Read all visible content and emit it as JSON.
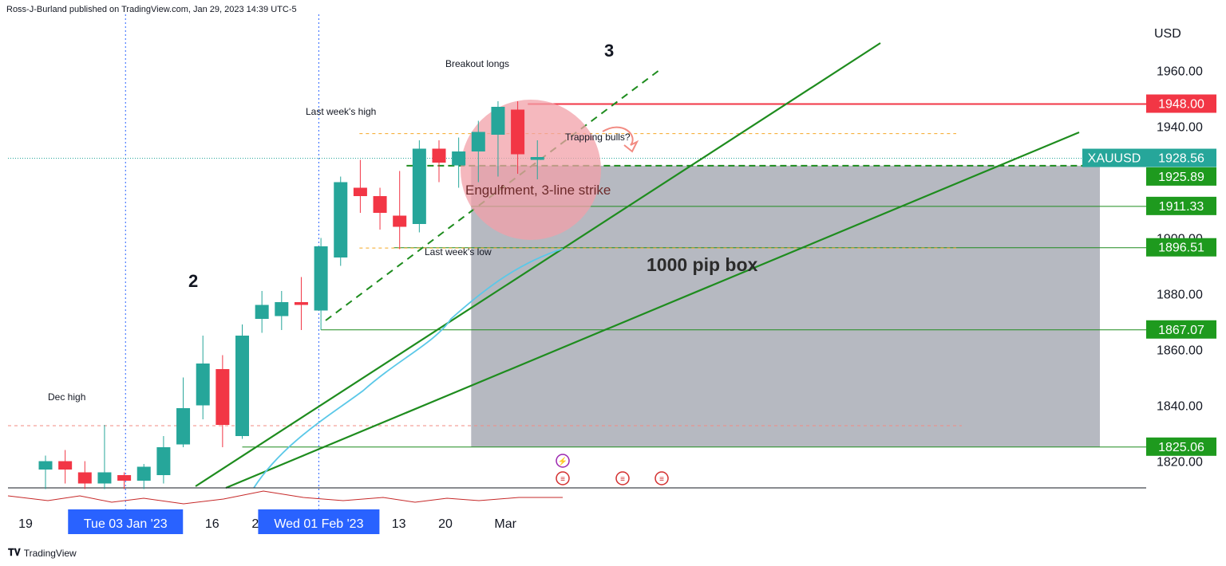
{
  "header": {
    "publisher_line": "Ross-J-Burland published on TradingView.com, Jan 29, 2023 14:39 UTC-5"
  },
  "footer": {
    "logo_text": "TradingView",
    "logo_icon": "tradingview-logo-icon"
  },
  "colors": {
    "up": "#26a69a",
    "down": "#f23645",
    "trend": "#1e8c1e",
    "resistance": "#f23645",
    "box": "#b2b5be",
    "circle": "#f2a0a8",
    "ma": "#5bc8e8",
    "label_green": "#1e9a1e",
    "label_teal": "#26a69a",
    "label_red": "#f23645",
    "label_blue": "#2962ff"
  },
  "chart_data": {
    "type": "candlestick",
    "symbol_label": "XAUUSD",
    "currency": "USD",
    "ylim": [
      1810,
      1975
    ],
    "y_ticks": [
      "1960.00",
      "1940.00",
      "1900.00",
      "1880.00",
      "1860.00",
      "1840.00",
      "1820.00"
    ],
    "y_tick_values": [
      1960,
      1940,
      1900,
      1880,
      1860,
      1840,
      1820
    ],
    "x_ticks": [
      "19",
      "16",
      "23",
      "13",
      "20",
      "Mar"
    ],
    "x_tick_dates": [
      "2022-12-19",
      "2023-01-16",
      "2023-01-23",
      "2023-02-13",
      "2023-02-20",
      "2023-03-01"
    ],
    "x_highlight": [
      {
        "label": "Tue 03 Jan '23",
        "date": "2023-01-03"
      },
      {
        "label": "Wed 01 Feb '23",
        "date": "2023-02-01"
      }
    ],
    "candles": [
      {
        "date": "2022-12-20",
        "o": 1817,
        "h": 1822,
        "l": 1810,
        "c": 1820
      },
      {
        "date": "2022-12-21",
        "o": 1820,
        "h": 1824,
        "l": 1812,
        "c": 1817
      },
      {
        "date": "2022-12-22",
        "o": 1816,
        "h": 1820,
        "l": 1810,
        "c": 1812
      },
      {
        "date": "2022-12-27",
        "o": 1812,
        "h": 1833,
        "l": 1810,
        "c": 1816
      },
      {
        "date": "2022-12-28",
        "o": 1815,
        "h": 1816,
        "l": 1810,
        "c": 1813
      },
      {
        "date": "2022-12-29",
        "o": 1813,
        "h": 1819,
        "l": 1810,
        "c": 1818
      },
      {
        "date": "2022-12-30",
        "o": 1815,
        "h": 1829,
        "l": 1812,
        "c": 1825
      },
      {
        "date": "2023-01-03",
        "o": 1826,
        "h": 1850,
        "l": 1825,
        "c": 1839
      },
      {
        "date": "2023-01-04",
        "o": 1840,
        "h": 1865,
        "l": 1835,
        "c": 1855
      },
      {
        "date": "2023-01-05",
        "o": 1853,
        "h": 1858,
        "l": 1825,
        "c": 1833
      },
      {
        "date": "2023-01-06",
        "o": 1829,
        "h": 1869,
        "l": 1828,
        "c": 1865
      },
      {
        "date": "2023-01-09",
        "o": 1871,
        "h": 1881,
        "l": 1866,
        "c": 1876
      },
      {
        "date": "2023-01-10",
        "o": 1872,
        "h": 1881,
        "l": 1867,
        "c": 1877
      },
      {
        "date": "2023-01-11",
        "o": 1877,
        "h": 1886,
        "l": 1867,
        "c": 1876
      },
      {
        "date": "2023-01-12",
        "o": 1874,
        "h": 1900,
        "l": 1867,
        "c": 1897
      },
      {
        "date": "2023-01-13",
        "o": 1893,
        "h": 1922,
        "l": 1890,
        "c": 1920
      },
      {
        "date": "2023-01-16",
        "o": 1918,
        "h": 1928,
        "l": 1909,
        "c": 1915
      },
      {
        "date": "2023-01-17",
        "o": 1915,
        "h": 1918,
        "l": 1903,
        "c": 1909
      },
      {
        "date": "2023-01-18",
        "o": 1908,
        "h": 1924,
        "l": 1896,
        "c": 1904
      },
      {
        "date": "2023-01-19",
        "o": 1905,
        "h": 1935,
        "l": 1902,
        "c": 1932
      },
      {
        "date": "2023-01-20",
        "o": 1932,
        "h": 1935,
        "l": 1920,
        "c": 1927
      },
      {
        "date": "2023-01-23",
        "o": 1926,
        "h": 1936,
        "l": 1918,
        "c": 1931
      },
      {
        "date": "2023-01-24",
        "o": 1931,
        "h": 1942,
        "l": 1920,
        "c": 1938
      },
      {
        "date": "2023-01-25",
        "o": 1937,
        "h": 1949,
        "l": 1922,
        "c": 1947
      },
      {
        "date": "2023-01-26",
        "o": 1946,
        "h": 1949,
        "l": 1923,
        "c": 1930
      },
      {
        "date": "2023-01-27",
        "o": 1928,
        "h": 1935,
        "l": 1921,
        "c": 1929
      }
    ],
    "price_labels": [
      {
        "text": "1948.00",
        "value": 1948.0,
        "color_key": "label_red"
      },
      {
        "text": "XAUUSD",
        "value": 1928.56,
        "color_key": "label_teal",
        "price_text": "1928.56"
      },
      {
        "text": "1925.89",
        "value": 1925.89,
        "color_key": "label_green"
      },
      {
        "text": "1911.33",
        "value": 1911.33,
        "color_key": "label_green"
      },
      {
        "text": "1896.51",
        "value": 1896.51,
        "color_key": "label_green"
      },
      {
        "text": "1867.07",
        "value": 1867.07,
        "color_key": "label_green"
      },
      {
        "text": "1825.06",
        "value": 1825.06,
        "color_key": "label_green"
      }
    ],
    "annotations": {
      "breakout_longs": "Breakout longs",
      "last_week_high": "Last week's high",
      "last_week_low": "Last week's low",
      "trapping_bulls": "Trapping bulls?",
      "engulfment": "Engulfment, 3-line strike",
      "pip_box": "1000 pip box",
      "dec_high": "Dec high",
      "wave_2": "2",
      "wave_3": "3"
    },
    "grid": false
  }
}
